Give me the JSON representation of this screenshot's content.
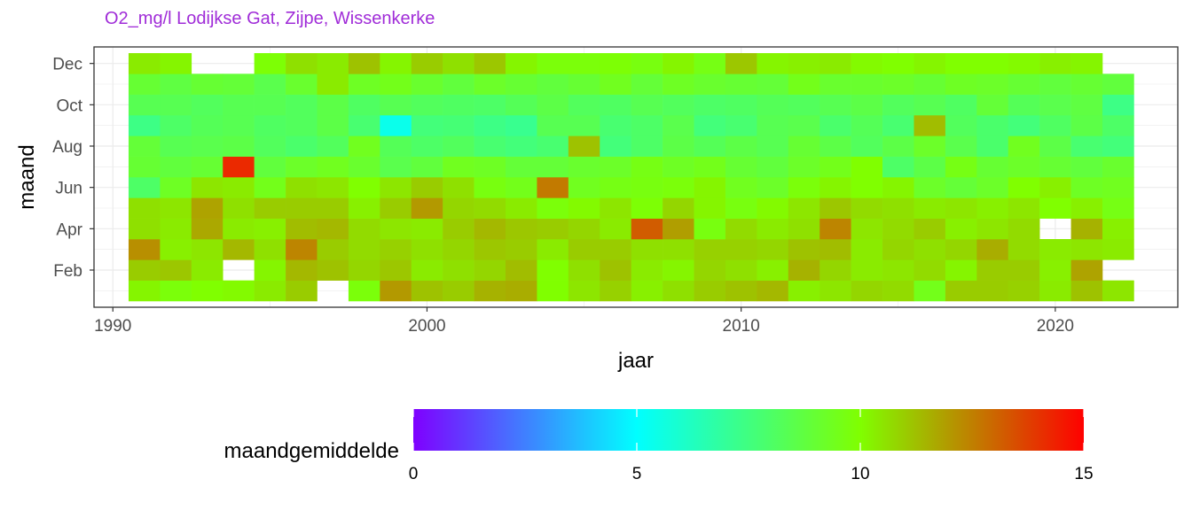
{
  "subtitle": "O2_mg/l Lodijkse Gat, Zijpe, Wissenkerke",
  "chart_data": {
    "type": "heatmap",
    "xlabel": "jaar",
    "ylabel": "maand",
    "x_ticks": [
      1990,
      2000,
      2010,
      2020
    ],
    "y_ticks": [
      {
        "month": 2,
        "label": "Feb"
      },
      {
        "month": 4,
        "label": "Apr"
      },
      {
        "month": 6,
        "label": "Jun"
      },
      {
        "month": 8,
        "label": "Aug"
      },
      {
        "month": 10,
        "label": "Oct"
      },
      {
        "month": 12,
        "label": "Dec"
      }
    ],
    "xlim": [
      1989.4,
      2023.9
    ],
    "ylim": [
      0.2,
      12.8
    ],
    "years": [
      1991,
      1992,
      1993,
      1994,
      1995,
      1996,
      1997,
      1998,
      1999,
      2000,
      2001,
      2002,
      2003,
      2004,
      2005,
      2006,
      2007,
      2008,
      2009,
      2010,
      2011,
      2012,
      2013,
      2014,
      2015,
      2016,
      2017,
      2018,
      2019,
      2020,
      2021,
      2022
    ],
    "months": [
      1,
      2,
      3,
      4,
      5,
      6,
      7,
      8,
      9,
      10,
      11,
      12
    ],
    "legend": {
      "title": "maandgemiddelde",
      "position": "bottom",
      "range": [
        0,
        15
      ],
      "ticks": [
        0,
        5,
        10,
        15
      ],
      "colors": [
        "#7f00ff",
        "#00ffff",
        "#80ff00",
        "#ff0000"
      ]
    },
    "values": [
      [
        10.2,
        9.8,
        10.0,
        10.1,
        10.4,
        11.0,
        null,
        9.8,
        12.0,
        11.2,
        11.0,
        11.5,
        11.6,
        10.0,
        10.5,
        10.9,
        10.3,
        10.6,
        11.0,
        11.2,
        11.4,
        10.3,
        10.5,
        10.8,
        10.7,
        9.5,
        11.0,
        11.0,
        10.9,
        10.4,
        11.2,
        10.5
      ],
      [
        11.0,
        11.1,
        10.4,
        null,
        10.2,
        11.4,
        11.2,
        10.8,
        11.1,
        10.4,
        10.6,
        10.8,
        11.3,
        10.0,
        10.6,
        11.2,
        10.4,
        10.2,
        10.8,
        10.6,
        10.3,
        11.5,
        10.8,
        10.4,
        10.5,
        10.7,
        10.2,
        11.0,
        11.0,
        10.3,
        11.8,
        null
      ],
      [
        12.2,
        10.3,
        10.5,
        11.4,
        10.6,
        12.4,
        11.0,
        10.7,
        10.9,
        10.6,
        10.8,
        11.1,
        11.0,
        10.4,
        11.0,
        11.0,
        10.6,
        10.6,
        10.9,
        10.9,
        10.8,
        11.2,
        11.3,
        10.4,
        10.8,
        10.6,
        10.8,
        11.6,
        10.7,
        10.4,
        10.5,
        10.4
      ],
      [
        10.6,
        10.4,
        11.7,
        10.4,
        10.3,
        11.3,
        11.4,
        10.7,
        10.5,
        10.4,
        11.0,
        11.4,
        11.1,
        11.0,
        10.8,
        10.4,
        13.2,
        11.9,
        9.7,
        10.7,
        10.4,
        10.6,
        12.4,
        10.5,
        10.7,
        11.0,
        10.3,
        10.5,
        10.7,
        null,
        11.5,
        10.3
      ],
      [
        10.6,
        10.5,
        11.8,
        10.6,
        11.0,
        11.0,
        11.0,
        10.3,
        11.0,
        12.0,
        10.8,
        10.7,
        10.4,
        9.8,
        10.1,
        10.5,
        9.9,
        10.8,
        10.2,
        9.7,
        10.1,
        10.5,
        11.1,
        10.7,
        10.6,
        10.4,
        10.5,
        10.3,
        10.5,
        10.0,
        10.3,
        9.6
      ],
      [
        8.0,
        9.3,
        10.5,
        10.4,
        9.5,
        10.6,
        10.5,
        10.0,
        10.5,
        11.0,
        10.6,
        9.7,
        9.5,
        12.6,
        9.4,
        9.6,
        9.7,
        9.8,
        10.2,
        9.4,
        9.2,
        9.8,
        10.2,
        10.0,
        10.2,
        9.2,
        8.9,
        9.2,
        10.0,
        10.3,
        9.3,
        9.4
      ],
      [
        9.0,
        8.8,
        9.0,
        14.2,
        8.8,
        9.2,
        9.4,
        9.1,
        8.5,
        8.8,
        9.4,
        9.3,
        8.9,
        8.9,
        9.1,
        9.2,
        9.6,
        9.3,
        9.5,
        9.0,
        8.8,
        9.2,
        9.5,
        10.0,
        8.0,
        8.6,
        9.6,
        9.0,
        9.2,
        9.0,
        8.8,
        9.1
      ],
      [
        8.9,
        8.4,
        8.5,
        8.6,
        8.2,
        7.9,
        8.2,
        9.4,
        8.3,
        8.0,
        8.2,
        7.8,
        7.6,
        7.8,
        11.2,
        7.6,
        8.0,
        8.6,
        8.3,
        8.6,
        8.4,
        9.0,
        8.6,
        8.2,
        8.6,
        9.2,
        8.5,
        7.9,
        9.4,
        8.6,
        7.8,
        7.6
      ],
      [
        7.4,
        8.0,
        8.3,
        8.4,
        8.1,
        8.2,
        8.6,
        7.8,
        5.4,
        7.6,
        7.7,
        7.4,
        7.2,
        8.4,
        8.4,
        7.8,
        8.0,
        8.5,
        7.6,
        7.8,
        8.4,
        8.5,
        7.9,
        8.3,
        7.8,
        11.3,
        8.2,
        7.9,
        7.6,
        8.1,
        8.6,
        8.0
      ],
      [
        8.4,
        8.4,
        8.2,
        8.4,
        8.4,
        8.2,
        8.6,
        8.1,
        8.4,
        8.2,
        8.1,
        8.0,
        8.3,
        8.6,
        8.2,
        8.1,
        8.4,
        8.2,
        8.0,
        8.1,
        8.3,
        8.2,
        8.4,
        8.6,
        8.2,
        8.4,
        8.1,
        8.9,
        8.3,
        8.5,
        8.7,
        7.4
      ],
      [
        9.0,
        8.7,
        9.0,
        8.9,
        8.5,
        9.1,
        10.4,
        9.3,
        9.5,
        9.1,
        8.8,
        9.2,
        9.0,
        8.8,
        9.0,
        9.4,
        8.9,
        9.3,
        9.1,
        9.0,
        8.9,
        9.5,
        9.1,
        9.1,
        9.2,
        9.0,
        9.3,
        9.2,
        9.0,
        8.8,
        9.0,
        8.8
      ],
      [
        10.4,
        10.2,
        null,
        null,
        9.9,
        10.6,
        10.4,
        11.2,
        10.2,
        11.0,
        10.6,
        11.1,
        10.2,
        9.8,
        9.8,
        9.9,
        9.7,
        10.2,
        9.6,
        11.1,
        10.2,
        10.3,
        10.4,
        10.1,
        10.0,
        10.2,
        10.0,
        10.0,
        10.1,
        10.3,
        10.2,
        null
      ]
    ]
  }
}
